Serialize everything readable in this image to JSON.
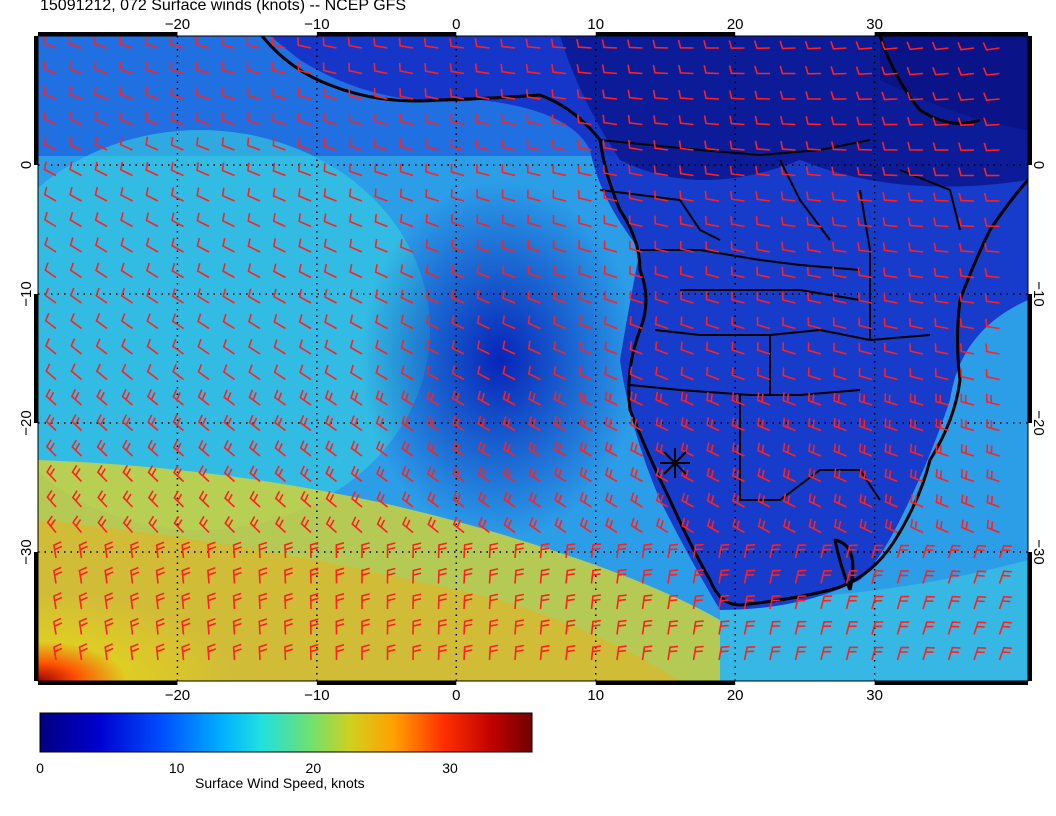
{
  "title": "15091212, 072 Surface winds (knots) -- NCEP GFS",
  "map": {
    "lon_ticks": [
      "−20",
      "−10",
      "0",
      "10",
      "20",
      "30"
    ],
    "lat_ticks": [
      "0",
      "−10",
      "−20",
      "−30"
    ],
    "lon_values": [
      -20,
      -10,
      0,
      10,
      20,
      30
    ],
    "lat_values": [
      0,
      -10,
      -20,
      -30
    ],
    "lon_range": [
      -30,
      41
    ],
    "lat_range": [
      10,
      -40
    ],
    "barb_color": "#ff2020",
    "coast_color": "#000000"
  },
  "colorbar": {
    "label": "Surface Wind Speed, knots",
    "ticks": [
      "0",
      "10",
      "20",
      "30"
    ],
    "tick_values": [
      0,
      10,
      20,
      30
    ],
    "range": [
      0,
      36
    ]
  }
}
